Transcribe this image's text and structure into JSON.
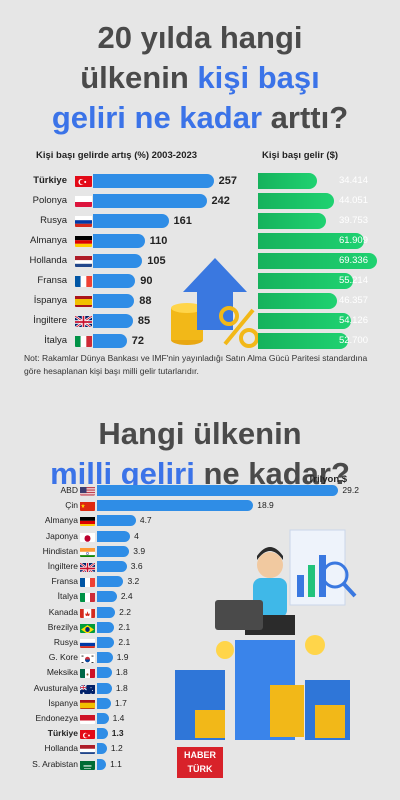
{
  "title": {
    "line1": "20 yılda hangi",
    "line2a": "ülkenin ",
    "line2b": "kişi başı",
    "line3a": "geliri ne kadar",
    "line3b": " arttı?"
  },
  "left_header": "Kişi başı gelirde artış (%) 2003-2023",
  "right_header": "Kişi başı gelir ($)",
  "note": "Not: Rakamlar Dünya Bankası ve IMF'nin yayınladığı Satın Alma Gücü Paritesi standardına göre hesaplanan kişi başı milli gelir tutarlarıdır.",
  "subtitle": {
    "line1": "Hangi ülkenin",
    "line2a": "milli geliri",
    "line2b": " ne kadar?"
  },
  "unit_label": "Trilyon $",
  "logo": {
    "line1": "HABER",
    "line2": "TÜRK"
  },
  "colors": {
    "blue_bar": "#2f8de6",
    "green_bar": "#16b25c",
    "accent": "#3b73e8"
  },
  "chart_data": [
    {
      "type": "bar",
      "title": "Kişi başı gelirde artış (%) 2003-2023",
      "categories": [
        "Türkiye",
        "Polonya",
        "Rusya",
        "Almanya",
        "Hollanda",
        "Fransa",
        "İspanya",
        "İngiltere",
        "İtalya"
      ],
      "values": [
        257,
        242,
        161,
        110,
        105,
        90,
        88,
        85,
        72
      ],
      "highlight": "Türkiye",
      "xlim": [
        0,
        260
      ]
    },
    {
      "type": "bar",
      "title": "Kişi başı gelir ($)",
      "categories": [
        "Türkiye",
        "Polonya",
        "Rusya",
        "Almanya",
        "Hollanda",
        "Fransa",
        "İspanya",
        "İngiltere",
        "İtalya"
      ],
      "values": [
        34414,
        44051,
        39753,
        61909,
        69336,
        55214,
        46357,
        54126,
        52700
      ],
      "labels": [
        "34.414",
        "44.051",
        "39.753",
        "61.909",
        "69.336",
        "55.214",
        "46.357",
        "54.126",
        "52.700"
      ],
      "xlim": [
        0,
        70000
      ]
    },
    {
      "type": "bar",
      "title": "Hangi ülkenin milli geliri ne kadar?",
      "unit": "Trilyon $",
      "categories": [
        "ABD",
        "Çin",
        "Almanya",
        "Japonya",
        "Hindistan",
        "İngiltere",
        "Fransa",
        "İtalya",
        "Kanada",
        "Brezilya",
        "Rusya",
        "G. Kore",
        "Meksika",
        "Avusturalya",
        "İspanya",
        "Endonezya",
        "Türkiye",
        "Hollanda",
        "S. Arabistan"
      ],
      "values": [
        29.2,
        18.9,
        4.7,
        4,
        3.9,
        3.6,
        3.2,
        2.4,
        2.2,
        2.1,
        2.1,
        1.9,
        1.8,
        1.8,
        1.7,
        1.4,
        1.3,
        1.2,
        1.1
      ],
      "highlight": "Türkiye",
      "xlim": [
        0,
        30
      ]
    }
  ],
  "flags": {
    "Türkiye": "tr",
    "Polonya": "pl",
    "Rusya": "ru",
    "Almanya": "de",
    "Hollanda": "nl",
    "Fransa": "fr",
    "İspanya": "es",
    "İngiltere": "gb",
    "İtalya": "it",
    "ABD": "us",
    "Çin": "cn",
    "Japonya": "jp",
    "Hindistan": "in",
    "Kanada": "ca",
    "Brezilya": "br",
    "G. Kore": "kr",
    "Meksika": "mx",
    "Avusturalya": "au",
    "Endonezya": "id",
    "S. Arabistan": "sa"
  }
}
